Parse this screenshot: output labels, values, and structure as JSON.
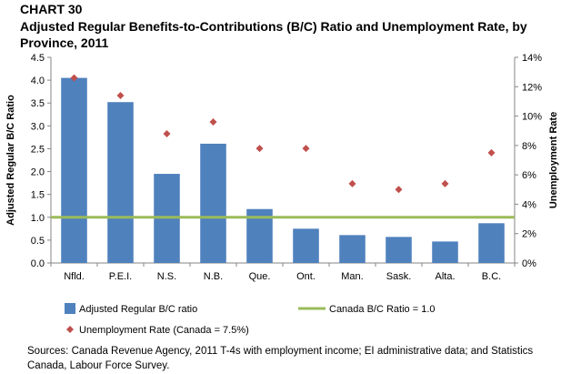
{
  "header": {
    "chart_number": "CHART 30",
    "title": "Adjusted Regular Benefits-to-Contributions (B/C) Ratio and Unemployment Rate, by Province, 2011"
  },
  "source_note": "Sources: Canada Revenue Agency, 2011 T-4s with employment income;  EI administrative  data; and Statistics Canada,  Labour Force Survey.",
  "colors": {
    "bar": "#4f81bd",
    "line": "#9bbb59",
    "marker": "#c0504d"
  },
  "chart_data": {
    "type": "bar",
    "categories": [
      "Nfld.",
      "P.E.I.",
      "N.S.",
      "N.B.",
      "Que.",
      "Ont.",
      "Man.",
      "Sask.",
      "Alta.",
      "B.C."
    ],
    "series": [
      {
        "name": "Adjusted Regular B/C ratio",
        "type": "bar",
        "axis": "left",
        "values": [
          4.05,
          3.52,
          1.95,
          2.61,
          1.18,
          0.75,
          0.61,
          0.57,
          0.47,
          0.87
        ]
      },
      {
        "name": "Unemployment Rate (Canada = 7.5%)",
        "type": "scatter",
        "axis": "right",
        "values": [
          12.6,
          11.4,
          8.8,
          9.6,
          7.8,
          7.8,
          5.4,
          5.0,
          5.4,
          7.5
        ]
      },
      {
        "name": "Canada B/C Ratio = 1.0",
        "type": "line",
        "axis": "left",
        "value": 1.0
      }
    ],
    "ylabel": "Adjusted Regular B/C Ratio",
    "y2label": "Unemployment Rate",
    "ylim": [
      0,
      4.5
    ],
    "y2lim": [
      0,
      14
    ],
    "yticks": [
      "0.0",
      "0.5",
      "1.0",
      "1.5",
      "2.0",
      "2.5",
      "3.0",
      "3.5",
      "4.0",
      "4.5"
    ],
    "y2ticks": [
      "0%",
      "2%",
      "4%",
      "6%",
      "8%",
      "10%",
      "12%",
      "14%"
    ],
    "legend_position": "bottom"
  }
}
